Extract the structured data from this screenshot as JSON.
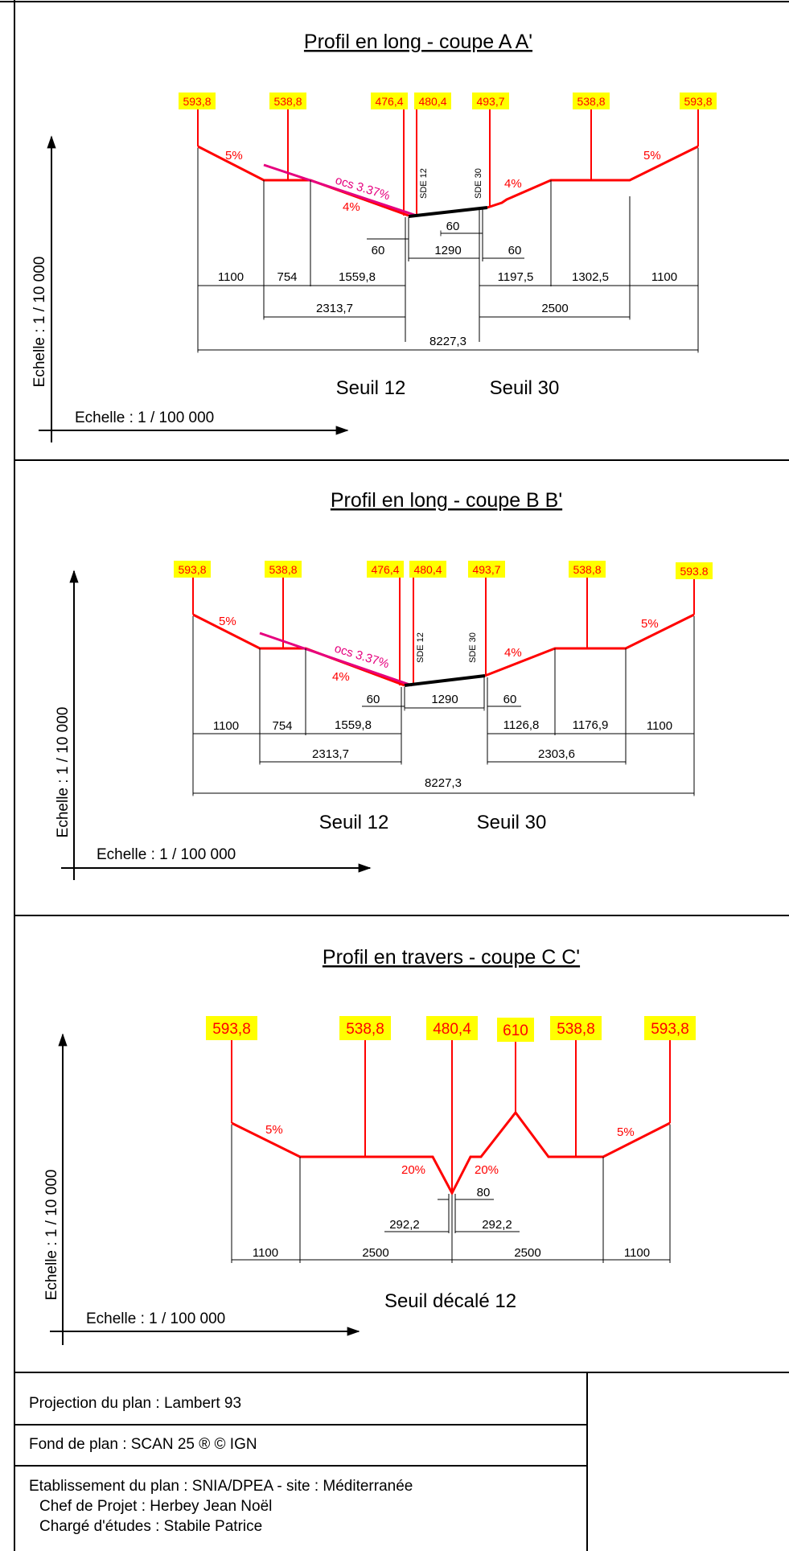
{
  "panels": [
    {
      "title": "Profil en long - coupe A A'",
      "elevations": [
        "593,8",
        "538,8",
        "476,4",
        "480,4",
        "493,7",
        "538,8",
        "593,8"
      ],
      "slopes": [
        "5%",
        "ocs 3.37%",
        "4%",
        "4%",
        "5%"
      ],
      "structure_labels": [
        "SDE 12",
        "SDE 30"
      ],
      "dims_top": [
        "60",
        "60",
        "1290",
        "60"
      ],
      "dims_row1": [
        "1100",
        "754",
        "1559,8",
        "1197,5",
        "1302,5",
        "1100"
      ],
      "dims_row2": [
        "2313,7",
        "2500"
      ],
      "dims_total": "8227,3",
      "seuils": [
        "Seuil 12",
        "Seuil 30"
      ],
      "scale_v": "Echelle : 1 / 10 000",
      "scale_h": "Echelle : 1 / 100 000"
    },
    {
      "title": "Profil en long - coupe B B'",
      "elevations": [
        "593,8",
        "538,8",
        "476,4",
        "480,4",
        "493,7",
        "538,8",
        "593.8"
      ],
      "slopes": [
        "5%",
        "ocs 3.37%",
        "4%",
        "4%",
        "5%"
      ],
      "structure_labels": [
        "SDE 12",
        "SDE 30"
      ],
      "dims_top": [
        "60",
        "1290",
        "60"
      ],
      "dims_row1": [
        "1100",
        "754",
        "1559,8",
        "1126,8",
        "1176,9",
        "1100"
      ],
      "dims_row2": [
        "2313,7",
        "2303,6"
      ],
      "dims_total": "8227,3",
      "seuils": [
        "Seuil 12",
        "Seuil 30"
      ],
      "scale_v": "Echelle : 1 / 10 000",
      "scale_h": "Echelle : 1 / 100 000"
    },
    {
      "title": "Profil en travers - coupe C C'",
      "elevations": [
        "593,8",
        "538,8",
        "480,4",
        "610",
        "538,8",
        "593,8"
      ],
      "slopes": [
        "5%",
        "20%",
        "20%",
        "5%"
      ],
      "dims_small": [
        "80",
        "292,2",
        "292,2"
      ],
      "dims_row1": [
        "1100",
        "2500",
        "2500",
        "1100"
      ],
      "seuil": "Seuil décalé 12",
      "scale_v": "Echelle : 1 / 10 000",
      "scale_h": "Echelle : 1 / 100 000"
    }
  ],
  "info": {
    "projection": "Projection du plan : Lambert 93",
    "fond": "Fond de plan : SCAN 25 ® © IGN",
    "etablissement": "Etablissement du plan : SNIA/DPEA - site : Méditerranée",
    "chef": "Chef de Projet : Herbey Jean Noël",
    "charge": "Chargé d'études : Stabile Patrice"
  },
  "colors": {
    "profile": "#ff0000",
    "ocs": "#e6007e",
    "label_bg": "#ffff00",
    "structure": "#000000"
  }
}
